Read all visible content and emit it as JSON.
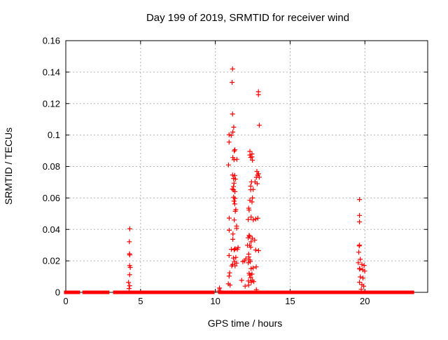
{
  "chart_data": {
    "type": "scatter",
    "title": "Day 199 of 2019, SRMTID for receiver wind",
    "xlabel": "GPS time / hours",
    "ylabel": "SRMTID / TECUs",
    "xlim": [
      0,
      24.2
    ],
    "ylim": [
      0,
      0.16
    ],
    "xticks": [
      0,
      5,
      10,
      15,
      20
    ],
    "xtick_labels": [
      "0",
      "5",
      "10",
      "15",
      "20"
    ],
    "yticks": [
      0,
      0.02,
      0.04,
      0.06,
      0.08,
      0.1,
      0.12,
      0.14,
      0.16
    ],
    "ytick_labels": [
      "0",
      "0.02",
      "0.04",
      "0.06",
      "0.08",
      "0.1",
      "0.12",
      "0.14",
      "0.16"
    ],
    "grid": true,
    "legend_position": "none",
    "marker": {
      "shape": "plus",
      "size": 7,
      "color": "#ff0000"
    },
    "colors": {
      "marker": "#ff0000",
      "grid": "#b3b3b3",
      "axis": "#000000",
      "background": "#ffffff",
      "text": "#000000"
    },
    "baseline_segments": [
      [
        0.02,
        0.82
      ],
      [
        1.25,
        2.78
      ],
      [
        3.3,
        9.81
      ],
      [
        10.35,
        10.55
      ],
      [
        10.62,
        10.9
      ],
      [
        11.05,
        11.35
      ],
      [
        11.6,
        12.3
      ],
      [
        12.5,
        12.72
      ],
      [
        12.78,
        19.78
      ],
      [
        19.82,
        20.02
      ],
      [
        20.07,
        23.15
      ]
    ],
    "points": [
      [
        4.28,
        0.0404
      ],
      [
        4.25,
        0.0322
      ],
      [
        4.26,
        0.0245
      ],
      [
        4.28,
        0.0238
      ],
      [
        4.27,
        0.017
      ],
      [
        4.31,
        0.0158
      ],
      [
        4.27,
        0.0112
      ],
      [
        4.2,
        0.0063
      ],
      [
        4.27,
        0.0042
      ],
      [
        4.23,
        0.0024
      ],
      [
        11.15,
        0.142
      ],
      [
        11.12,
        0.1335
      ],
      [
        11.15,
        0.1134
      ],
      [
        11.23,
        0.105
      ],
      [
        11.17,
        0.1019
      ],
      [
        10.92,
        0.1002
      ],
      [
        11.06,
        0.0998
      ],
      [
        10.92,
        0.0955
      ],
      [
        11.31,
        0.0906
      ],
      [
        11.26,
        0.0899
      ],
      [
        11.17,
        0.0857
      ],
      [
        11.44,
        0.0846
      ],
      [
        11.25,
        0.0843
      ],
      [
        10.88,
        0.081
      ],
      [
        11.15,
        0.0746
      ],
      [
        11.3,
        0.0743
      ],
      [
        11.22,
        0.0724
      ],
      [
        11.34,
        0.072
      ],
      [
        11.25,
        0.0694
      ],
      [
        11.21,
        0.0672
      ],
      [
        11.14,
        0.0657
      ],
      [
        11.22,
        0.0651
      ],
      [
        11.31,
        0.064
      ],
      [
        11.22,
        0.0605
      ],
      [
        11.31,
        0.0597
      ],
      [
        11.25,
        0.058
      ],
      [
        11.3,
        0.0562
      ],
      [
        11.37,
        0.0526
      ],
      [
        11.33,
        0.0515
      ],
      [
        10.93,
        0.0472
      ],
      [
        11.26,
        0.046
      ],
      [
        11.42,
        0.0421
      ],
      [
        11.42,
        0.0408
      ],
      [
        10.93,
        0.0395
      ],
      [
        11.18,
        0.0371
      ],
      [
        11.17,
        0.0337
      ],
      [
        11.52,
        0.0285
      ],
      [
        11.32,
        0.0277
      ],
      [
        11.07,
        0.0273
      ],
      [
        11.47,
        0.0273
      ],
      [
        11.26,
        0.027
      ],
      [
        10.92,
        0.0234
      ],
      [
        11.37,
        0.0222
      ],
      [
        11.21,
        0.0218
      ],
      [
        11.28,
        0.0195
      ],
      [
        11.42,
        0.0186
      ],
      [
        11.16,
        0.0177
      ],
      [
        11.32,
        0.0168
      ],
      [
        11.1,
        0.0168
      ],
      [
        10.96,
        0.0124
      ],
      [
        10.92,
        0.0103
      ],
      [
        10.87,
        0.0054
      ],
      [
        10.98,
        0.0046
      ],
      [
        10.28,
        0.0027
      ],
      [
        10.2,
        0.0008
      ],
      [
        10.35,
        0.0009
      ],
      [
        11.95,
        0.02
      ],
      [
        12.04,
        0.0213
      ],
      [
        11.84,
        0.0195
      ],
      [
        11.99,
        0.0039
      ],
      [
        11.76,
        0.0076
      ],
      [
        12.88,
        0.1275
      ],
      [
        12.88,
        0.1257
      ],
      [
        12.94,
        0.1062
      ],
      [
        12.31,
        0.0896
      ],
      [
        12.45,
        0.088
      ],
      [
        12.31,
        0.0873
      ],
      [
        12.45,
        0.0861
      ],
      [
        12.36,
        0.0858
      ],
      [
        12.48,
        0.084
      ],
      [
        12.78,
        0.0769
      ],
      [
        12.89,
        0.0754
      ],
      [
        12.83,
        0.0746
      ],
      [
        12.94,
        0.0732
      ],
      [
        12.74,
        0.0731
      ],
      [
        12.65,
        0.0702
      ],
      [
        12.42,
        0.0702
      ],
      [
        12.8,
        0.0691
      ],
      [
        12.36,
        0.0675
      ],
      [
        12.53,
        0.0654
      ],
      [
        12.36,
        0.0652
      ],
      [
        12.48,
        0.06
      ],
      [
        12.31,
        0.0585
      ],
      [
        12.45,
        0.0575
      ],
      [
        12.23,
        0.0535
      ],
      [
        12.26,
        0.0523
      ],
      [
        12.39,
        0.0478
      ],
      [
        12.84,
        0.0471
      ],
      [
        12.7,
        0.0466
      ],
      [
        12.2,
        0.0463
      ],
      [
        12.54,
        0.046
      ],
      [
        12.26,
        0.0362
      ],
      [
        12.29,
        0.0356
      ],
      [
        12.2,
        0.0347
      ],
      [
        12.47,
        0.0344
      ],
      [
        12.63,
        0.0332
      ],
      [
        12.39,
        0.0322
      ],
      [
        12.29,
        0.03
      ],
      [
        12.15,
        0.0299
      ],
      [
        12.36,
        0.0287
      ],
      [
        12.7,
        0.0269
      ],
      [
        12.89,
        0.0265
      ],
      [
        12.23,
        0.0243
      ],
      [
        12.23,
        0.0225
      ],
      [
        12.31,
        0.0206
      ],
      [
        12.34,
        0.0195
      ],
      [
        12.2,
        0.0188
      ],
      [
        12.73,
        0.0162
      ],
      [
        12.53,
        0.0155
      ],
      [
        12.39,
        0.0151
      ],
      [
        12.26,
        0.0121
      ],
      [
        12.45,
        0.0116
      ],
      [
        12.29,
        0.011
      ],
      [
        12.36,
        0.0094
      ],
      [
        12.47,
        0.0076
      ],
      [
        12.21,
        0.0072
      ],
      [
        12.57,
        0.0068
      ],
      [
        12.4,
        0.0064
      ],
      [
        12.23,
        0.0046
      ],
      [
        12.74,
        0.0017
      ],
      [
        19.64,
        0.059
      ],
      [
        19.64,
        0.0489
      ],
      [
        19.64,
        0.0448
      ],
      [
        19.64,
        0.03
      ],
      [
        19.62,
        0.0295
      ],
      [
        19.59,
        0.0255
      ],
      [
        19.69,
        0.021
      ],
      [
        19.56,
        0.0188
      ],
      [
        19.8,
        0.0177
      ],
      [
        19.95,
        0.0171
      ],
      [
        19.64,
        0.0151
      ],
      [
        19.66,
        0.0148
      ],
      [
        19.85,
        0.0143
      ],
      [
        19.99,
        0.0135
      ],
      [
        19.69,
        0.0098
      ],
      [
        19.87,
        0.0091
      ],
      [
        19.64,
        0.0064
      ],
      [
        19.8,
        0.0049
      ],
      [
        19.92,
        0.0039
      ],
      [
        19.76,
        0.0019
      ]
    ]
  }
}
